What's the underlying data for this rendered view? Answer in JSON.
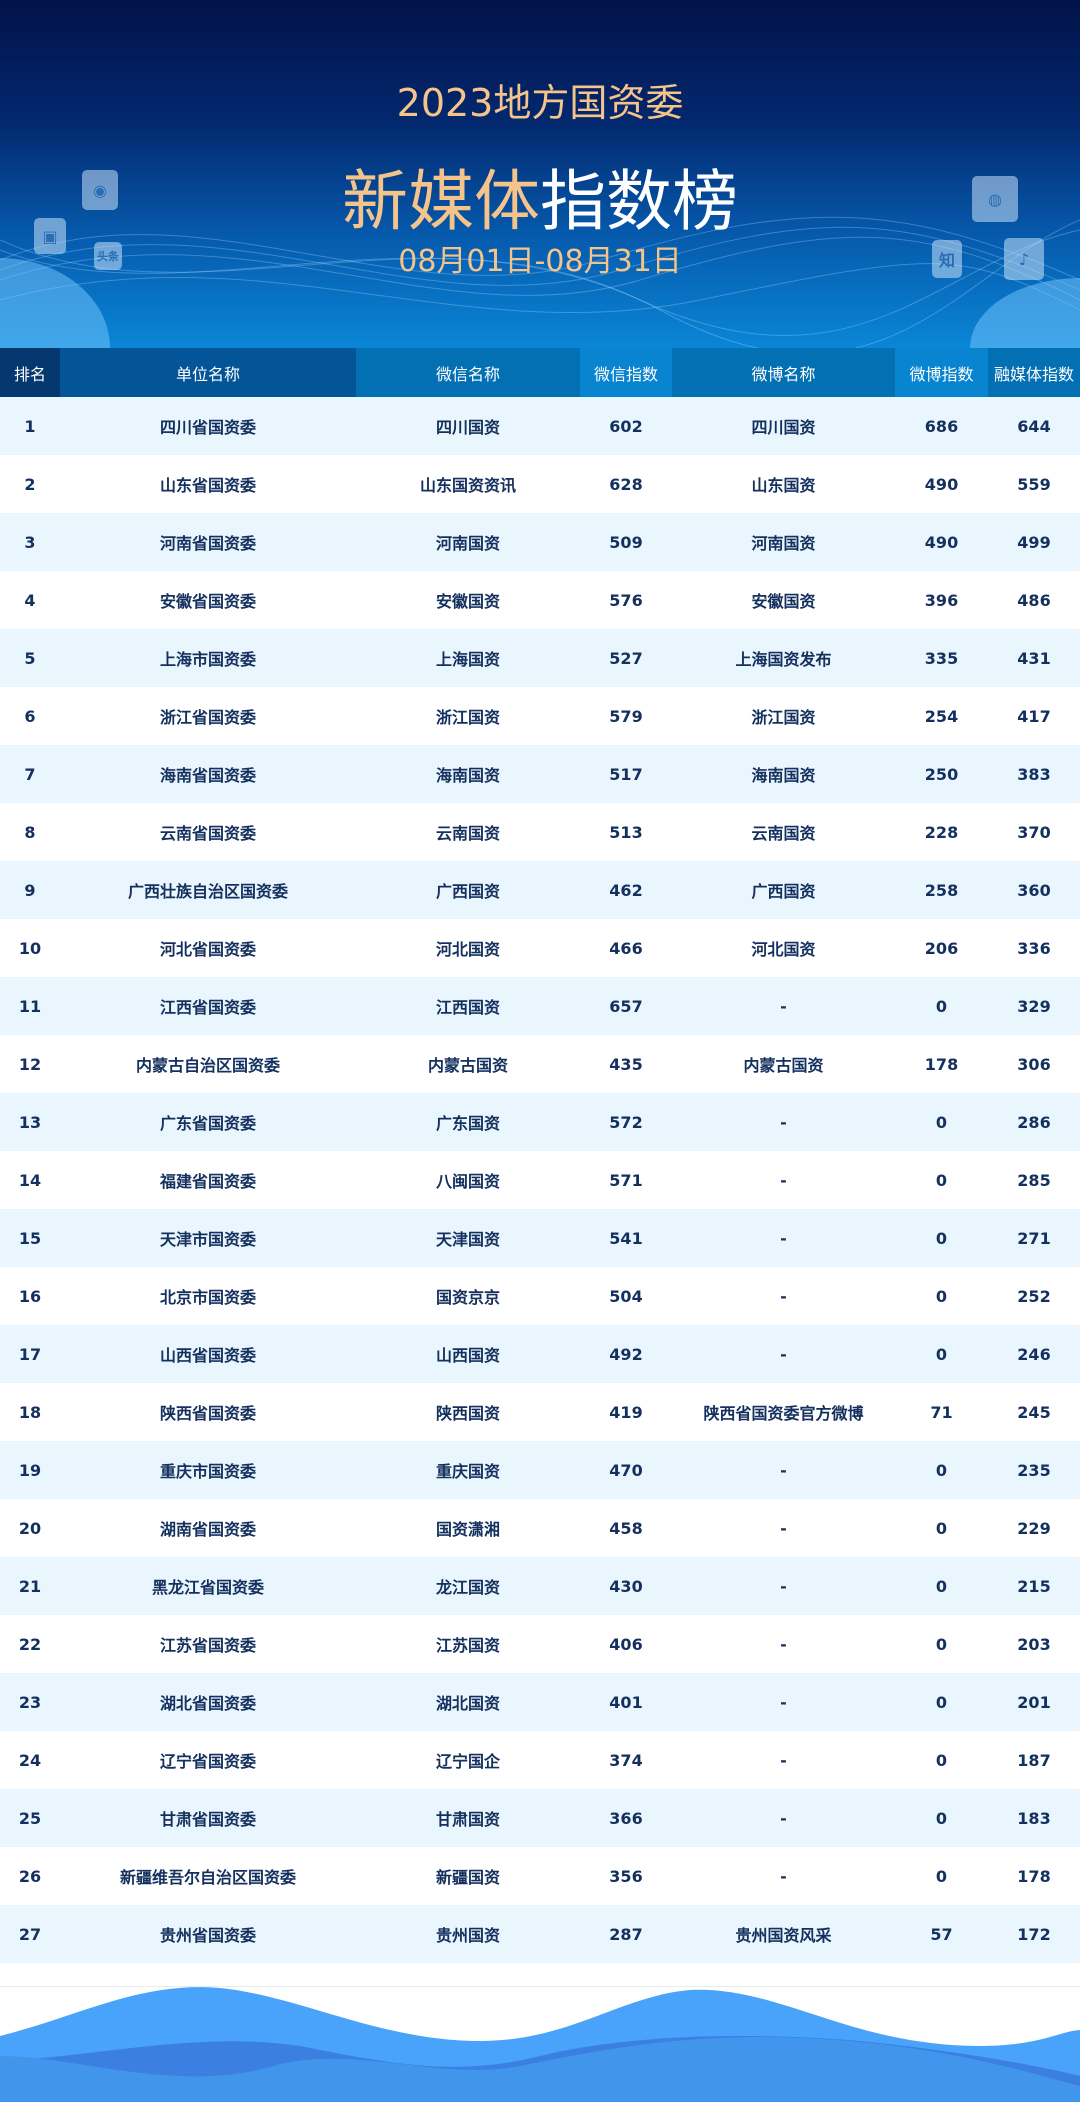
{
  "header": {
    "line1": "2023地方国资委",
    "title_a": "新媒体",
    "title_b": "指数榜",
    "dates": "08月01日-08月31日"
  },
  "icons": [
    "weibo-icon",
    "kuaishou-icon",
    "toutiao-icon",
    "wechat-icon",
    "zhihu-icon",
    "douyin-icon"
  ],
  "icon_labels": {
    "toutiao": "头条",
    "zhihu": "知"
  },
  "columns": [
    "排名",
    "单位名称",
    "微信名称",
    "微信指数",
    "微博名称",
    "微博指数",
    "融媒体指数"
  ],
  "rows": [
    [
      "1",
      "四川省国资委",
      "四川国资",
      "602",
      "四川国资",
      "686",
      "644"
    ],
    [
      "2",
      "山东省国资委",
      "山东国资资讯",
      "628",
      "山东国资",
      "490",
      "559"
    ],
    [
      "3",
      "河南省国资委",
      "河南国资",
      "509",
      "河南国资",
      "490",
      "499"
    ],
    [
      "4",
      "安徽省国资委",
      "安徽国资",
      "576",
      "安徽国资",
      "396",
      "486"
    ],
    [
      "5",
      "上海市国资委",
      "上海国资",
      "527",
      "上海国资发布",
      "335",
      "431"
    ],
    [
      "6",
      "浙江省国资委",
      "浙江国资",
      "579",
      "浙江国资",
      "254",
      "417"
    ],
    [
      "7",
      "海南省国资委",
      "海南国资",
      "517",
      "海南国资",
      "250",
      "383"
    ],
    [
      "8",
      "云南省国资委",
      "云南国资",
      "513",
      "云南国资",
      "228",
      "370"
    ],
    [
      "9",
      "广西壮族自治区国资委",
      "广西国资",
      "462",
      "广西国资",
      "258",
      "360"
    ],
    [
      "10",
      "河北省国资委",
      "河北国资",
      "466",
      "河北国资",
      "206",
      "336"
    ],
    [
      "11",
      "江西省国资委",
      "江西国资",
      "657",
      "-",
      "0",
      "329"
    ],
    [
      "12",
      "内蒙古自治区国资委",
      "内蒙古国资",
      "435",
      "内蒙古国资",
      "178",
      "306"
    ],
    [
      "13",
      "广东省国资委",
      "广东国资",
      "572",
      "-",
      "0",
      "286"
    ],
    [
      "14",
      "福建省国资委",
      "八闽国资",
      "571",
      "-",
      "0",
      "285"
    ],
    [
      "15",
      "天津市国资委",
      "天津国资",
      "541",
      "-",
      "0",
      "271"
    ],
    [
      "16",
      "北京市国资委",
      "国资京京",
      "504",
      "-",
      "0",
      "252"
    ],
    [
      "17",
      "山西省国资委",
      "山西国资",
      "492",
      "-",
      "0",
      "246"
    ],
    [
      "18",
      "陕西省国资委",
      "陕西国资",
      "419",
      "陕西省国资委官方微博",
      "71",
      "245"
    ],
    [
      "19",
      "重庆市国资委",
      "重庆国资",
      "470",
      "-",
      "0",
      "235"
    ],
    [
      "20",
      "湖南省国资委",
      "国资潇湘",
      "458",
      "-",
      "0",
      "229"
    ],
    [
      "21",
      "黑龙江省国资委",
      "龙江国资",
      "430",
      "-",
      "0",
      "215"
    ],
    [
      "22",
      "江苏省国资委",
      "江苏国资",
      "406",
      "-",
      "0",
      "203"
    ],
    [
      "23",
      "湖北省国资委",
      "湖北国资",
      "401",
      "-",
      "0",
      "201"
    ],
    [
      "24",
      "辽宁省国资委",
      "辽宁国企",
      "374",
      "-",
      "0",
      "187"
    ],
    [
      "25",
      "甘肃省国资委",
      "甘肃国资",
      "366",
      "-",
      "0",
      "183"
    ],
    [
      "26",
      "新疆维吾尔自治区国资委",
      "新疆国资",
      "356",
      "-",
      "0",
      "178"
    ],
    [
      "27",
      "贵州省国资委",
      "贵州国资",
      "287",
      "贵州国资风采",
      "57",
      "172"
    ]
  ],
  "colors": {
    "header_cols": [
      "#04386e",
      "#045598",
      "#0470b4",
      "#0884d0",
      "#0470b4",
      "#0884d0",
      "#0470b4"
    ],
    "text": "#14305e",
    "row_alt": "#eaf6fd"
  }
}
